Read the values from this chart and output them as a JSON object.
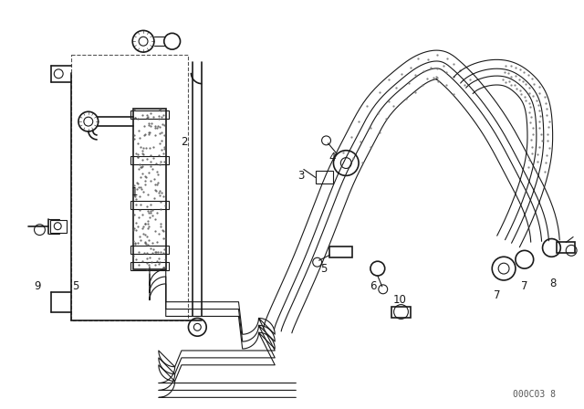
{
  "background_color": "#ffffff",
  "line_color": "#1a1a1a",
  "fig_width": 6.4,
  "fig_height": 4.48,
  "dpi": 100,
  "watermark_text": "000C03 8",
  "watermark_fontsize": 7
}
